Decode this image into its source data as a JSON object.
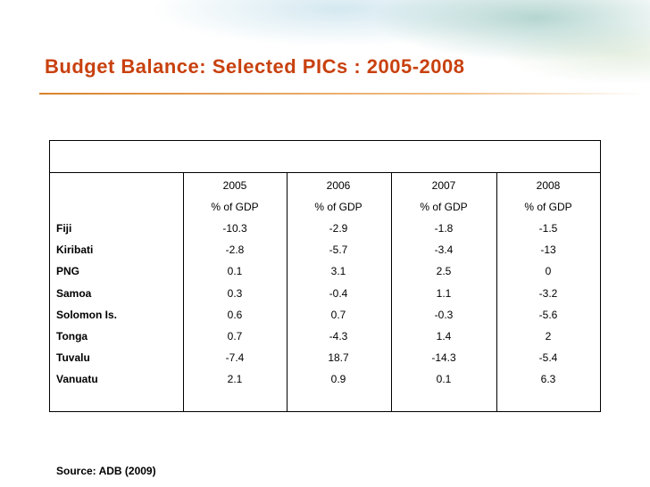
{
  "header": {
    "title": "Budget Balance: Selected PICs : 2005-2008"
  },
  "table": {
    "years": [
      "2005",
      "2006",
      "2007",
      "2008"
    ],
    "units": [
      "% of GDP",
      "% of GDP",
      "% of GDP",
      "% of GDP"
    ],
    "rows": [
      {
        "country": "Fiji",
        "values": [
          -10.3,
          -2.9,
          -1.8,
          -1.5
        ]
      },
      {
        "country": "Kiribati",
        "values": [
          -2.8,
          -5.7,
          -3.4,
          -13
        ]
      },
      {
        "country": "PNG",
        "values": [
          0.1,
          3.1,
          2.5,
          0
        ]
      },
      {
        "country": "Samoa",
        "values": [
          0.3,
          -0.4,
          1.1,
          -3.2
        ]
      },
      {
        "country": "Solomon Is.",
        "values": [
          0.6,
          0.7,
          -0.3,
          -5.6
        ]
      },
      {
        "country": "Tonga",
        "values": [
          0.7,
          -4.3,
          1.4,
          2
        ]
      },
      {
        "country": "Tuvalu",
        "values": [
          -7.4,
          18.7,
          -14.3,
          -5.4
        ]
      },
      {
        "country": "Vanuatu",
        "values": [
          2.1,
          0.9,
          0.1,
          6.3
        ]
      }
    ]
  },
  "source": "Source: ADB (2009)"
}
